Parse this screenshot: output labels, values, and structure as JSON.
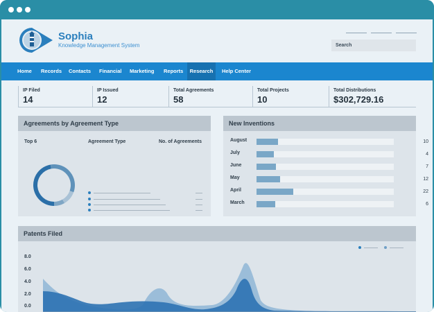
{
  "app": {
    "name": "Sophia",
    "subtitle": "Knowledge Management System"
  },
  "search": {
    "label": "Search"
  },
  "nav": [
    {
      "label": "Home"
    },
    {
      "label": "Records"
    },
    {
      "label": "Contacts"
    },
    {
      "label": "Financial"
    },
    {
      "label": "Marketing"
    },
    {
      "label": "Reports"
    },
    {
      "label": "Research",
      "active": true
    },
    {
      "label": "Help Center"
    }
  ],
  "stats": [
    {
      "label": "IP Filed",
      "value": "14"
    },
    {
      "label": "IP Issued",
      "value": "12"
    },
    {
      "label": "Total Agreements",
      "value": "58"
    },
    {
      "label": "Total Projects",
      "value": "10"
    },
    {
      "label": "Total Distributions",
      "value": "$302,729.16"
    }
  ],
  "agreements": {
    "title": "Agreements by Agreement Type",
    "col_top": "Top 6",
    "col_type": "Agreement Type",
    "col_count": "No. of Agreements",
    "donut_colors": [
      "#2b6fa8",
      "#5f92ba",
      "#a9c2d6",
      "#7fa6c5"
    ]
  },
  "inventions": {
    "title": "New Inventions",
    "rows": [
      {
        "month": "August",
        "value": "10",
        "fill": 0.155
      },
      {
        "month": "July",
        "value": "4",
        "fill": 0.125
      },
      {
        "month": "June",
        "value": "7",
        "fill": 0.14
      },
      {
        "month": "May",
        "value": "12",
        "fill": 0.17
      },
      {
        "month": "April",
        "value": "22",
        "fill": 0.27
      },
      {
        "month": "March",
        "value": "6",
        "fill": 0.135
      }
    ]
  },
  "patents": {
    "title": "Patents Filed",
    "y_ticks": [
      "8.0",
      "6.0",
      "4.0",
      "2.0",
      "0.0"
    ],
    "colors": {
      "dark": "#2d72b3",
      "light": "#8fb6d6"
    }
  }
}
